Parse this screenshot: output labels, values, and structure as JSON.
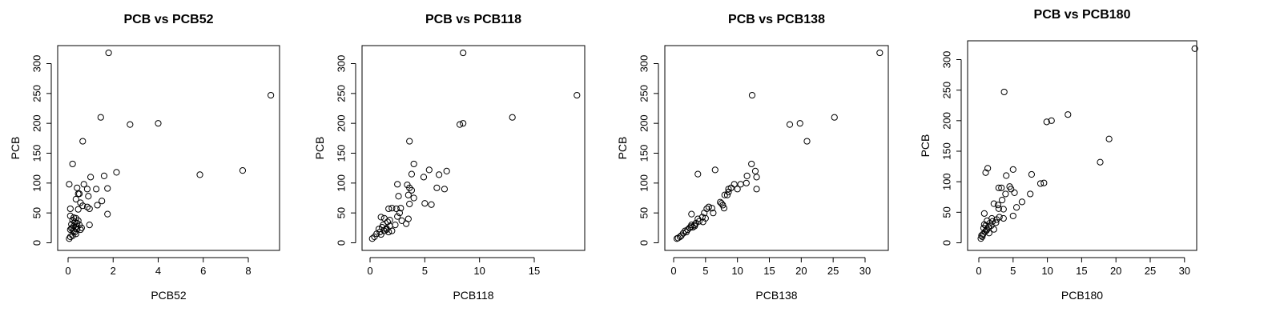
{
  "chart_data": [
    {
      "type": "scatter",
      "title": "PCB vs PCB52",
      "xlabel": "PCB52",
      "ylabel": "PCB",
      "xticks": [
        0,
        2,
        4,
        6,
        8
      ],
      "yticks": [
        0,
        50,
        100,
        150,
        200,
        250,
        300
      ],
      "points": [
        [
          1.8,
          318
        ],
        [
          9.0,
          247
        ],
        [
          1.45,
          210
        ],
        [
          2.75,
          198
        ],
        [
          4.0,
          200
        ],
        [
          0.65,
          170
        ],
        [
          0.2,
          132
        ],
        [
          2.15,
          118
        ],
        [
          5.85,
          114
        ],
        [
          7.75,
          121
        ],
        [
          1.6,
          112
        ],
        [
          1.0,
          110
        ],
        [
          0.05,
          98
        ],
        [
          0.7,
          98
        ],
        [
          0.4,
          92
        ],
        [
          1.75,
          91
        ],
        [
          0.85,
          90
        ],
        [
          1.25,
          90
        ],
        [
          0.45,
          82
        ],
        [
          0.5,
          82
        ],
        [
          0.9,
          78
        ],
        [
          0.35,
          73
        ],
        [
          1.5,
          70
        ],
        [
          0.55,
          67
        ],
        [
          1.3,
          63
        ],
        [
          0.65,
          62
        ],
        [
          0.85,
          60
        ],
        [
          0.1,
          57
        ],
        [
          0.45,
          56
        ],
        [
          0.95,
          57
        ],
        [
          1.75,
          48
        ],
        [
          0.1,
          45
        ],
        [
          0.25,
          42
        ],
        [
          0.35,
          41
        ],
        [
          0.2,
          38
        ],
        [
          0.45,
          37
        ],
        [
          0.3,
          35
        ],
        [
          0.4,
          33
        ],
        [
          0.15,
          31
        ],
        [
          0.5,
          30
        ],
        [
          0.95,
          30
        ],
        [
          0.25,
          28
        ],
        [
          0.35,
          27
        ],
        [
          0.2,
          25
        ],
        [
          0.15,
          24
        ],
        [
          0.4,
          23
        ],
        [
          0.55,
          22
        ],
        [
          0.1,
          22
        ],
        [
          0.25,
          20
        ],
        [
          0.3,
          18
        ],
        [
          0.6,
          25
        ],
        [
          0.35,
          15
        ],
        [
          0.1,
          10
        ],
        [
          0.05,
          7
        ],
        [
          0.2,
          12
        ]
      ]
    },
    {
      "type": "scatter",
      "title": "PCB vs PCB118",
      "xlabel": "PCB118",
      "ylabel": "PCB",
      "xticks": [
        0,
        5,
        10,
        15
      ],
      "yticks": [
        0,
        50,
        100,
        150,
        200,
        250,
        300
      ],
      "points": [
        [
          8.5,
          318
        ],
        [
          18.9,
          247
        ],
        [
          13.0,
          210
        ],
        [
          8.2,
          198
        ],
        [
          8.5,
          200
        ],
        [
          3.6,
          170
        ],
        [
          4.0,
          132
        ],
        [
          5.4,
          122
        ],
        [
          7.0,
          120
        ],
        [
          6.3,
          114
        ],
        [
          3.8,
          115
        ],
        [
          4.9,
          110
        ],
        [
          2.5,
          98
        ],
        [
          3.4,
          97
        ],
        [
          3.6,
          92
        ],
        [
          6.1,
          92
        ],
        [
          6.8,
          90
        ],
        [
          3.8,
          88
        ],
        [
          3.5,
          80
        ],
        [
          2.6,
          78
        ],
        [
          4.0,
          75
        ],
        [
          5.0,
          66
        ],
        [
          5.6,
          64
        ],
        [
          3.6,
          65
        ],
        [
          2.0,
          58
        ],
        [
          1.7,
          57
        ],
        [
          2.4,
          57
        ],
        [
          2.8,
          58
        ],
        [
          2.7,
          50
        ],
        [
          1.0,
          43
        ],
        [
          1.3,
          41
        ],
        [
          2.5,
          44
        ],
        [
          3.5,
          40
        ],
        [
          1.8,
          38
        ],
        [
          2.9,
          37
        ],
        [
          1.6,
          35
        ],
        [
          3.3,
          32
        ],
        [
          2.3,
          30
        ],
        [
          1.2,
          30
        ],
        [
          1.8,
          28
        ],
        [
          1.1,
          26
        ],
        [
          1.5,
          24
        ],
        [
          0.8,
          23
        ],
        [
          1.3,
          20
        ],
        [
          2.0,
          20
        ],
        [
          1.7,
          18
        ],
        [
          0.6,
          15
        ],
        [
          1.0,
          14
        ],
        [
          0.4,
          10
        ],
        [
          0.2,
          7
        ],
        [
          1.5,
          22
        ],
        [
          0.9,
          18
        ]
      ]
    },
    {
      "type": "scatter",
      "title": "PCB vs PCB138",
      "xlabel": "PCB138",
      "ylabel": "PCB",
      "xticks": [
        0,
        5,
        10,
        15,
        20,
        25,
        30
      ],
      "yticks": [
        0,
        50,
        100,
        150,
        200,
        250,
        300
      ],
      "points": [
        [
          32.3,
          318
        ],
        [
          12.3,
          247
        ],
        [
          25.2,
          210
        ],
        [
          18.2,
          198
        ],
        [
          19.8,
          200
        ],
        [
          20.9,
          170
        ],
        [
          12.2,
          132
        ],
        [
          6.5,
          122
        ],
        [
          12.8,
          120
        ],
        [
          3.8,
          115
        ],
        [
          11.5,
          112
        ],
        [
          13.0,
          110
        ],
        [
          10.5,
          98
        ],
        [
          11.4,
          100
        ],
        [
          9.5,
          98
        ],
        [
          9.0,
          92
        ],
        [
          8.6,
          90
        ],
        [
          13.0,
          90
        ],
        [
          8.0,
          80
        ],
        [
          8.4,
          80
        ],
        [
          10.0,
          90
        ],
        [
          8.6,
          85
        ],
        [
          7.3,
          68
        ],
        [
          7.5,
          66
        ],
        [
          7.7,
          63
        ],
        [
          7.9,
          58
        ],
        [
          5.5,
          60
        ],
        [
          5.2,
          57
        ],
        [
          6.0,
          58
        ],
        [
          4.8,
          50
        ],
        [
          6.2,
          50
        ],
        [
          2.8,
          48
        ],
        [
          4.5,
          43
        ],
        [
          5.0,
          41
        ],
        [
          3.8,
          40
        ],
        [
          4.0,
          36
        ],
        [
          3.5,
          33
        ],
        [
          4.6,
          35
        ],
        [
          2.8,
          30
        ],
        [
          3.3,
          28
        ],
        [
          2.5,
          25
        ],
        [
          2.2,
          22
        ],
        [
          3.0,
          26
        ],
        [
          1.8,
          20
        ],
        [
          1.5,
          16
        ],
        [
          2.0,
          18
        ],
        [
          1.2,
          12
        ],
        [
          1.0,
          10
        ],
        [
          0.7,
          8
        ],
        [
          0.5,
          7
        ],
        [
          3.3,
          30
        ],
        [
          2.7,
          27
        ]
      ]
    },
    {
      "type": "scatter",
      "title": "PCB vs PCB180",
      "xlabel": "PCB180",
      "ylabel": "PCB",
      "xticks": [
        0,
        5,
        10,
        15,
        20,
        25,
        30
      ],
      "yticks": [
        0,
        50,
        100,
        150,
        200,
        250,
        300
      ],
      "points": [
        [
          31.5,
          318
        ],
        [
          3.7,
          247
        ],
        [
          13.0,
          210
        ],
        [
          9.9,
          198
        ],
        [
          10.6,
          200
        ],
        [
          19.0,
          170
        ],
        [
          17.7,
          132
        ],
        [
          1.3,
          122
        ],
        [
          5.0,
          120
        ],
        [
          1.0,
          115
        ],
        [
          7.7,
          112
        ],
        [
          4.0,
          110
        ],
        [
          9.0,
          97
        ],
        [
          9.5,
          98
        ],
        [
          4.5,
          92
        ],
        [
          2.9,
          90
        ],
        [
          3.3,
          90
        ],
        [
          4.7,
          88
        ],
        [
          5.2,
          82
        ],
        [
          7.5,
          80
        ],
        [
          3.9,
          80
        ],
        [
          3.4,
          70
        ],
        [
          6.3,
          67
        ],
        [
          2.2,
          64
        ],
        [
          2.8,
          62
        ],
        [
          5.5,
          58
        ],
        [
          3.6,
          55
        ],
        [
          2.9,
          56
        ],
        [
          0.8,
          48
        ],
        [
          5.0,
          44
        ],
        [
          3.0,
          42
        ],
        [
          3.6,
          40
        ],
        [
          1.2,
          36
        ],
        [
          2.0,
          35
        ],
        [
          1.6,
          32
        ],
        [
          2.5,
          33
        ],
        [
          1.0,
          28
        ],
        [
          1.8,
          28
        ],
        [
          1.4,
          26
        ],
        [
          0.7,
          24
        ],
        [
          2.2,
          22
        ],
        [
          1.1,
          20
        ],
        [
          0.9,
          18
        ],
        [
          1.5,
          16
        ],
        [
          0.6,
          14
        ],
        [
          0.5,
          10
        ],
        [
          0.3,
          7
        ],
        [
          0.8,
          30
        ],
        [
          2.6,
          38
        ],
        [
          1.9,
          40
        ],
        [
          1.2,
          22
        ],
        [
          0.4,
          12
        ]
      ]
    }
  ]
}
